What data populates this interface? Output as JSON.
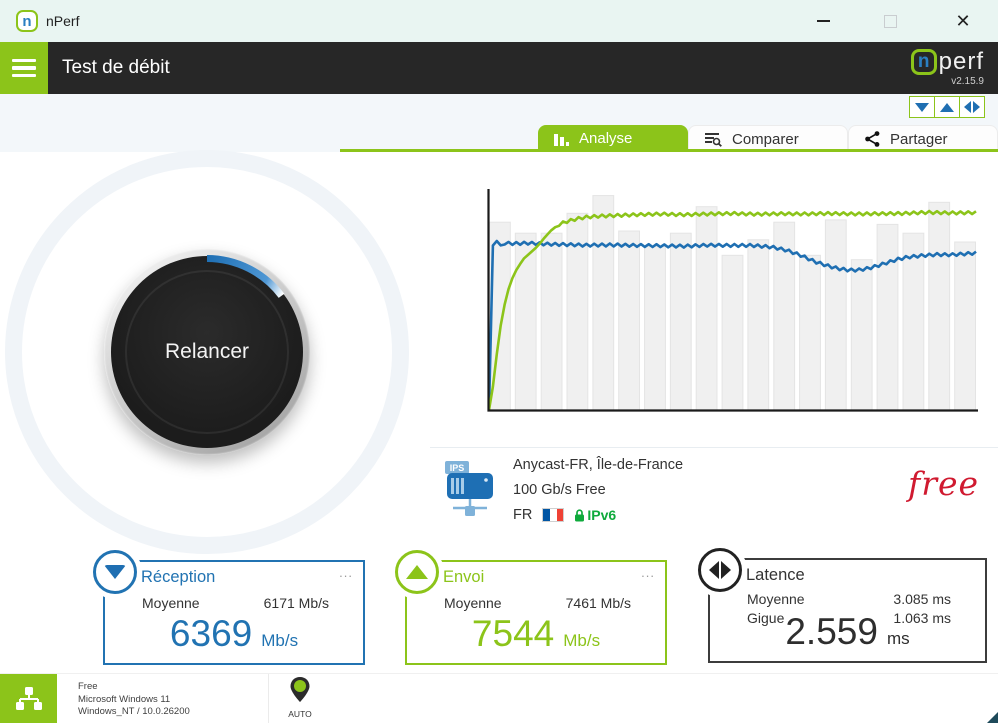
{
  "window": {
    "title": "nPerf",
    "logo_letter": "n",
    "close_glyph": "✕"
  },
  "header": {
    "menu_title": "Test de débit",
    "logo": {
      "n": "n",
      "perf": "perf",
      "version": "v2.15.9"
    }
  },
  "tabs": [
    {
      "label": "Analyse",
      "active": true
    },
    {
      "label": "Comparer",
      "active": false
    },
    {
      "label": "Partager",
      "active": false
    }
  ],
  "gauge": {
    "label": "Relancer"
  },
  "server": {
    "icon_label": "IPS",
    "name": "Anycast-FR, Île-de-France",
    "bandwidth": "100 Gb/s Free",
    "country": "FR",
    "ipv6_badge": "IPv6",
    "provider_logo": "free"
  },
  "cards": {
    "reception": {
      "title": "Réception",
      "more": "...",
      "avg_label": "Moyenne",
      "avg_value": "6171 Mb/s",
      "value": "6369",
      "unit": "Mb/s"
    },
    "envoi": {
      "title": "Envoi",
      "more": "...",
      "avg_label": "Moyenne",
      "avg_value": "7461 Mb/s",
      "value": "7544",
      "unit": "Mb/s"
    },
    "latence": {
      "title": "Latence",
      "avg_label": "Moyenne",
      "avg_value": "3.085 ms",
      "jitter_label": "Gigue",
      "jitter_value": "1.063 ms",
      "value": "2.559",
      "unit": "ms"
    }
  },
  "statusbar": {
    "isp": "Free",
    "os": "Microsoft Windows 11",
    "platform": "Windows_NT / 10.0.26200",
    "server_mode": "AUTO"
  },
  "colors": {
    "brand_green": "#8cc41a",
    "brand_blue": "#1f6fb2",
    "header_dark": "#272727",
    "titlebar_bg": "#e9f5f2",
    "band_bg": "#f3f7fa",
    "free_red": "#d01a30",
    "flag_blue": "#0055A4",
    "flag_white": "#ffffff",
    "flag_red": "#EF4135",
    "ipv6_green": "#0faa3c",
    "bar_fill": "#f0f0f0"
  },
  "chart_data": {
    "type": "line",
    "title": "",
    "xlabel": "",
    "ylabel": "",
    "unit": "Mb/s",
    "ylim": [
      0,
      8500
    ],
    "grid": false,
    "legend": "none",
    "series": [
      {
        "name": "Réception (download)",
        "color": "#1f6fb2",
        "avg": 6171,
        "final": 6369,
        "anchors": [
          [
            0,
            0
          ],
          [
            0.4,
            6480
          ],
          [
            1,
            6250
          ],
          [
            1.6,
            6500
          ],
          [
            2.2,
            6300
          ],
          [
            3,
            6420
          ],
          [
            5,
            6400
          ],
          [
            8,
            6420
          ],
          [
            12,
            6380
          ],
          [
            16,
            6360
          ],
          [
            20,
            6340
          ],
          [
            25,
            6350
          ],
          [
            30,
            6330
          ],
          [
            35,
            6320
          ],
          [
            40,
            6300
          ],
          [
            45,
            6340
          ],
          [
            50,
            6330
          ],
          [
            54,
            6330
          ],
          [
            58,
            6270
          ],
          [
            61,
            6150
          ],
          [
            64,
            5950
          ],
          [
            67,
            5700
          ],
          [
            70,
            5520
          ],
          [
            72,
            5430
          ],
          [
            74,
            5380
          ],
          [
            76,
            5390
          ],
          [
            78,
            5450
          ],
          [
            80,
            5560
          ],
          [
            82,
            5680
          ],
          [
            84,
            5800
          ],
          [
            86,
            5880
          ],
          [
            89,
            5940
          ],
          [
            92,
            5980
          ],
          [
            95,
            5970
          ],
          [
            98,
            6010
          ],
          [
            100,
            6040
          ]
        ]
      },
      {
        "name": "Envoi (upload)",
        "color": "#8cc41a",
        "avg": 7461,
        "final": 7544,
        "anchors": [
          [
            0,
            0
          ],
          [
            0.6,
            600
          ],
          [
            1.2,
            1500
          ],
          [
            2,
            2800
          ],
          [
            2.8,
            3700
          ],
          [
            3.6,
            4400
          ],
          [
            4.5,
            4950
          ],
          [
            5.5,
            5350
          ],
          [
            7,
            5800
          ],
          [
            8.5,
            6050
          ],
          [
            10,
            6300
          ],
          [
            11.5,
            6650
          ],
          [
            13,
            6950
          ],
          [
            14.5,
            7150
          ],
          [
            16,
            7250
          ],
          [
            18,
            7350
          ],
          [
            20,
            7420
          ],
          [
            23,
            7460
          ],
          [
            26,
            7480
          ],
          [
            30,
            7510
          ],
          [
            35,
            7540
          ],
          [
            40,
            7510
          ],
          [
            45,
            7540
          ],
          [
            50,
            7560
          ],
          [
            55,
            7530
          ],
          [
            60,
            7550
          ],
          [
            65,
            7540
          ],
          [
            70,
            7560
          ],
          [
            75,
            7540
          ],
          [
            80,
            7550
          ],
          [
            85,
            7560
          ],
          [
            90,
            7600
          ],
          [
            95,
            7580
          ],
          [
            100,
            7590
          ]
        ]
      }
    ],
    "background_bars": {
      "color": "#f0f0f0",
      "border": "#e4e4e4",
      "heights_pct": [
        85,
        80,
        80,
        89,
        97,
        81,
        74,
        80,
        92,
        70,
        77,
        85,
        70,
        86,
        68,
        84,
        80,
        94,
        76
      ]
    }
  }
}
